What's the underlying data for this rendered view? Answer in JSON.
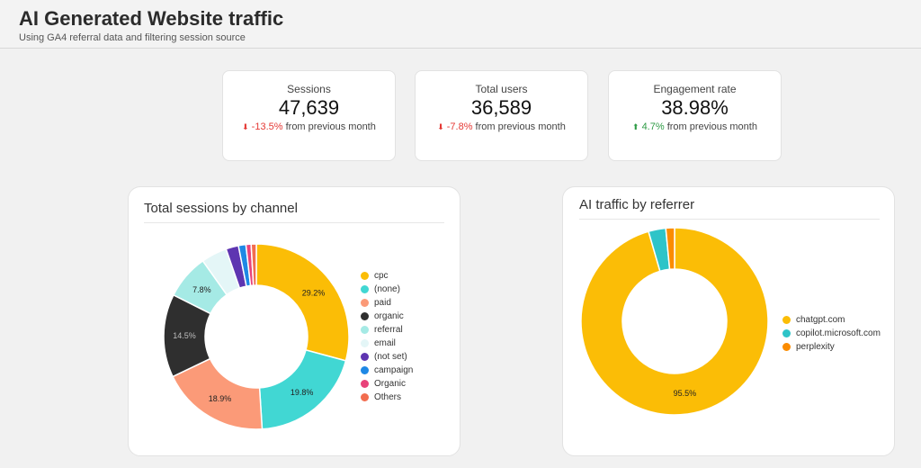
{
  "header": {
    "title": "AI Generated Website traffic",
    "subtitle": "Using GA4 referral data and filtering session source"
  },
  "kpis": [
    {
      "label": "Sessions",
      "value": "47,639",
      "arrow": "⬇",
      "change": "-13.5%",
      "direction": "down",
      "suffix": "from previous month"
    },
    {
      "label": "Total users",
      "value": "36,589",
      "arrow": "⬇",
      "change": "-7.8%",
      "direction": "down",
      "suffix": "from previous month"
    },
    {
      "label": "Engagement rate",
      "value": "38.98%",
      "arrow": "⬆",
      "change": "4.7%",
      "direction": "up",
      "suffix": "from previous month"
    }
  ],
  "colors": {
    "negative": "#e53935",
    "positive": "#2e9b45",
    "card_bg": "#ffffff",
    "page_bg": "#f1f1f1"
  },
  "chart_data": [
    {
      "type": "pie",
      "title": "Total sessions by channel",
      "legend_position": "right",
      "categories": [
        "cpc",
        "(none)",
        "paid",
        "organic",
        "referral",
        "email",
        "(not set)",
        "campaign",
        "Organic",
        "Others"
      ],
      "values": [
        29.2,
        19.8,
        18.9,
        14.5,
        7.8,
        4.5,
        2.2,
        1.3,
        0.9,
        0.9
      ],
      "colors": [
        "#fbbd06",
        "#41d7d3",
        "#fb9a78",
        "#2f2f2f",
        "#a5eae5",
        "#e4f6f7",
        "#5e35b1",
        "#1e88e5",
        "#e8437a",
        "#f26d4f"
      ],
      "data_labels": [
        "29.2%",
        "19.8%",
        "18.9%",
        "14.5%",
        "7.8%",
        "",
        "",
        "",
        "",
        ""
      ]
    },
    {
      "type": "pie",
      "title": "AI traffic by referrer",
      "legend_position": "right",
      "categories": [
        "chatgpt.com",
        "copilot.microsoft.com",
        "perplexity"
      ],
      "values": [
        95.5,
        3.0,
        1.5
      ],
      "colors": [
        "#fbbd06",
        "#2ec4c8",
        "#fb8c00"
      ],
      "data_labels": [
        "95.5%",
        "",
        ""
      ]
    }
  ]
}
